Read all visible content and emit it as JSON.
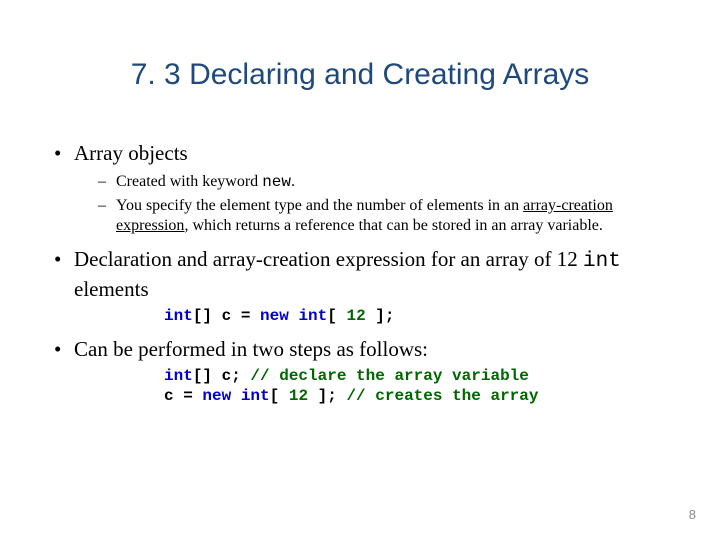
{
  "title": "7. 3  Declaring and Creating Arrays",
  "bullets": {
    "b1": "Array objects",
    "b1_sub": {
      "s1_pre": "Created with keyword ",
      "s1_kw": "new",
      "s1_post": ".",
      "s2_pre": "You specify the element type and the number of elements in an ",
      "s2_u": "array-creation expression",
      "s2_post": ", which returns a reference that can be stored in an array variable."
    },
    "b2_pre": "Declaration and array-creation expression for an array of 12 ",
    "b2_mono": "int",
    "b2_post": " elements",
    "b3": "Can be performed in two steps as follows:"
  },
  "code1": {
    "kw1": "int",
    "t1": "[] c = ",
    "kw2": "new",
    "t2": " ",
    "kw3": "int",
    "t3": "[ ",
    "num": "12",
    "t4": " ];"
  },
  "code2": {
    "l1_kw1": "int",
    "l1_t1": "[] c; ",
    "l1_cmt": "// declare the array variable",
    "l2_t1": "c = ",
    "l2_kw1": "new",
    "l2_t2": " ",
    "l2_kw2": "int",
    "l2_t3": "[ ",
    "l2_num": "12",
    "l2_t4": " ]; ",
    "l2_cmt": "// creates the array"
  },
  "pagenum": "8",
  "colors": {
    "title": "#1f497d",
    "keyword": "#0000cc",
    "number_comment": "#006600",
    "pagenum": "#8a8a8a",
    "background": "#ffffff",
    "text": "#000000"
  },
  "fonts": {
    "title_family": "Arial",
    "title_size_pt": 22,
    "body_family": "Times New Roman",
    "body_size_pt": 16,
    "sub_size_pt": 12,
    "code_family": "Courier New",
    "code_size_pt": 12,
    "code_weight": "bold"
  }
}
